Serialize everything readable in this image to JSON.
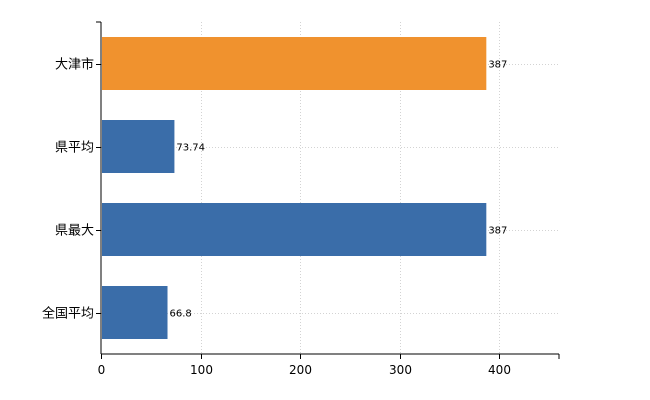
{
  "chart_data": {
    "type": "bar",
    "orientation": "horizontal",
    "categories": [
      "大津市",
      "県平均",
      "県最大",
      "全国平均"
    ],
    "values": [
      387,
      73.74,
      387,
      66.8
    ],
    "value_labels": [
      "387",
      "73.74",
      "387",
      "66.8"
    ],
    "bar_colors": [
      "#f0922e",
      "#3a6da9",
      "#3a6da9",
      "#3a6da9"
    ],
    "title": "",
    "xlabel": "",
    "ylabel": "",
    "xlim": [
      0,
      460
    ],
    "xticks": [
      0,
      100,
      200,
      300,
      400
    ],
    "xtick_labels": [
      "0",
      "100",
      "200",
      "300",
      "400"
    ],
    "grid": true,
    "legend": "none"
  }
}
